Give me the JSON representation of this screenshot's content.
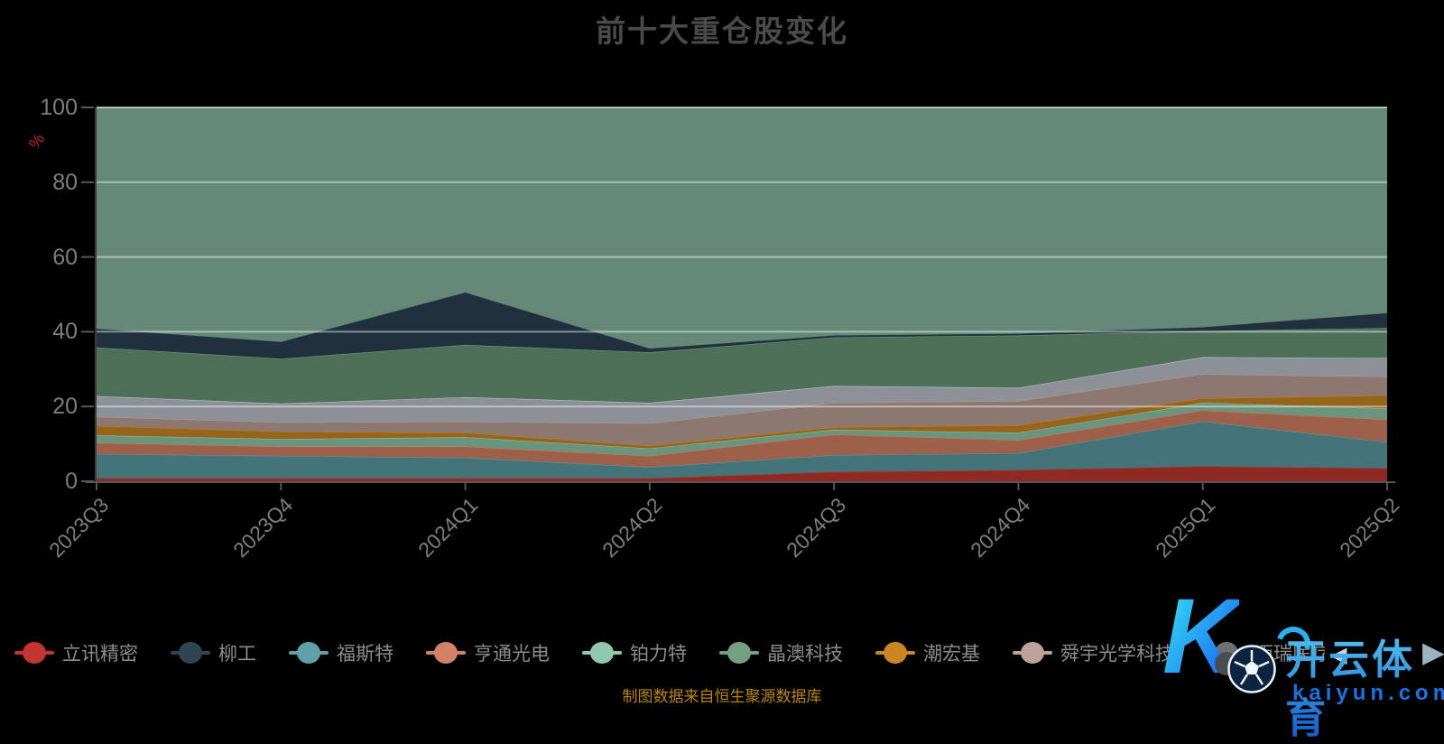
{
  "title": "前十大重仓股变化",
  "caption": "制图数据来自恒生聚源数据库",
  "watermark": {
    "logo_letter": "K",
    "brand": "开云体育",
    "domain": "kaiyun.com"
  },
  "legend": {
    "pager": {
      "prev": "◀",
      "next": "▶"
    },
    "items": [
      {
        "label": "立讯精密",
        "color": "#c23531"
      },
      {
        "label": "柳工",
        "color": "#2f4554"
      },
      {
        "label": "福斯特",
        "color": "#61a0a8"
      },
      {
        "label": "亨通光电",
        "color": "#d48265"
      },
      {
        "label": "铂力特",
        "color": "#91c7ae"
      },
      {
        "label": "晶澳科技",
        "color": "#749f83"
      },
      {
        "label": "潮宏基",
        "color": "#ca8622"
      },
      {
        "label": "舜宇光学科技",
        "color": "#bda29a"
      },
      {
        "label": "迈瑞医疗",
        "color": "#6e7074"
      }
    ]
  },
  "chart_data": {
    "type": "area",
    "stacked": true,
    "title": "前十大重仓股变化",
    "ylabel": "%",
    "y_axis": {
      "label": "%",
      "min": 0,
      "max": 100,
      "ticks": [
        0,
        20,
        40,
        60,
        80,
        100
      ]
    },
    "categories": [
      "2023Q3",
      "2023Q4",
      "2024Q1",
      "2024Q2",
      "2024Q3",
      "2024Q4",
      "2025Q1",
      "2025Q2"
    ],
    "series": [
      {
        "name": "立讯精密",
        "line_color": "#c23531",
        "area_color": "#8f2923",
        "values": [
          0.8,
          0.8,
          0.8,
          0.8,
          2.5,
          3.0,
          4.0,
          3.5
        ]
      },
      {
        "name": "福斯特",
        "line_color": "#61a0a8",
        "area_color": "#44737a",
        "values": [
          6.5,
          6.0,
          5.5,
          3.0,
          4.5,
          4.5,
          12.0,
          7.0
        ]
      },
      {
        "name": "亨通光电",
        "line_color": "#d48265",
        "area_color": "#9d604a",
        "values": [
          3.0,
          2.5,
          3.0,
          3.0,
          5.5,
          3.5,
          3.0,
          6.0
        ]
      },
      {
        "name": "铂力特",
        "line_color": "#91c7ae",
        "area_color": "#6b947f",
        "values": [
          2.0,
          2.0,
          2.5,
          2.0,
          1.3,
          2.0,
          2.0,
          3.0
        ]
      },
      {
        "name": "潮宏基",
        "line_color": "#ca8622",
        "area_color": "#96641b",
        "values": [
          2.5,
          2.0,
          1.2,
          0.7,
          0.7,
          2.0,
          1.2,
          3.5
        ]
      },
      {
        "name": "舜宇光学科技",
        "line_color": "#bda29a",
        "area_color": "#8d7871",
        "values": [
          2.5,
          2.5,
          3.0,
          6.0,
          6.5,
          6.5,
          6.5,
          5.0
        ]
      },
      {
        "name": "迈瑞医疗",
        "line_color": "#c4ccd3",
        "area_color": "#8b9197",
        "values": [
          5.5,
          5.0,
          6.5,
          5.5,
          4.5,
          3.5,
          4.5,
          5.0
        ]
      },
      {
        "name": "晶澳科技",
        "line_color": "#749f83",
        "area_color": "#4f7058",
        "values": [
          13.0,
          12.0,
          14.0,
          13.5,
          13.0,
          14.0,
          7.0,
          8.0
        ]
      },
      {
        "name": "柳工",
        "line_color": "#2f4554",
        "area_color": "#20303f",
        "values": [
          5.0,
          4.5,
          14.0,
          1.0,
          0.5,
          0.5,
          1.0,
          4.0
        ]
      }
    ],
    "remainder": {
      "area_color": "#658976",
      "line_color": "#9ec9b4"
    }
  }
}
